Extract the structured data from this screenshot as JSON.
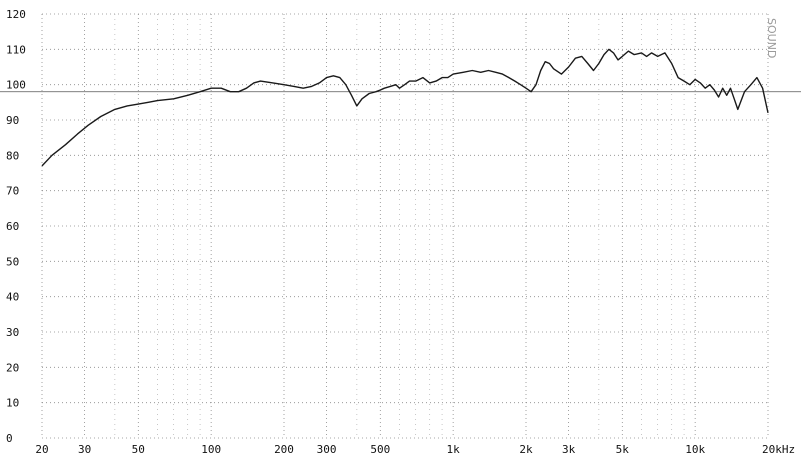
{
  "chart_data": {
    "type": "line",
    "title": "",
    "xlabel": "",
    "ylabel": "",
    "x_scale": "log",
    "xlim": [
      20,
      20000
    ],
    "ylim": [
      0,
      120
    ],
    "grid": true,
    "x_ticks": [
      {
        "value": 20,
        "label": "20"
      },
      {
        "value": 30,
        "label": "30"
      },
      {
        "value": 50,
        "label": "50"
      },
      {
        "value": 100,
        "label": "100"
      },
      {
        "value": 200,
        "label": "200"
      },
      {
        "value": 300,
        "label": "300"
      },
      {
        "value": 500,
        "label": "500"
      },
      {
        "value": 1000,
        "label": "1k"
      },
      {
        "value": 2000,
        "label": "2k"
      },
      {
        "value": 3000,
        "label": "3k"
      },
      {
        "value": 5000,
        "label": "5k"
      },
      {
        "value": 10000,
        "label": "10k"
      },
      {
        "value": 20000,
        "label": "20kHz"
      }
    ],
    "y_ticks": [
      {
        "value": 0,
        "label": "0"
      },
      {
        "value": 10,
        "label": "10"
      },
      {
        "value": 20,
        "label": "20"
      },
      {
        "value": 30,
        "label": "30"
      },
      {
        "value": 40,
        "label": "40"
      },
      {
        "value": 50,
        "label": "50"
      },
      {
        "value": 60,
        "label": "60"
      },
      {
        "value": 70,
        "label": "70"
      },
      {
        "value": 80,
        "label": "80"
      },
      {
        "value": 90,
        "label": "90"
      },
      {
        "value": 100,
        "label": "100"
      },
      {
        "value": 110,
        "label": "110"
      },
      {
        "value": 120,
        "label": "120"
      }
    ],
    "reference_level": 98,
    "stamp_text": "SOUND",
    "series": [
      {
        "x": [
          20,
          22,
          25,
          28,
          31,
          35,
          40,
          45,
          50,
          55,
          60,
          70,
          80,
          90,
          100,
          110,
          120,
          130,
          140,
          150,
          160,
          180,
          200,
          220,
          240,
          260,
          280,
          300,
          320,
          340,
          360,
          380,
          400,
          420,
          450,
          480,
          500,
          520,
          550,
          580,
          600,
          630,
          660,
          700,
          750,
          800,
          850,
          900,
          950,
          1000,
          1100,
          1200,
          1300,
          1400,
          1500,
          1600,
          1700,
          1800,
          1900,
          2000,
          2100,
          2200,
          2300,
          2400,
          2500,
          2600,
          2800,
          3000,
          3200,
          3400,
          3600,
          3800,
          4000,
          4200,
          4400,
          4600,
          4800,
          5000,
          5300,
          5600,
          6000,
          6300,
          6600,
          7000,
          7500,
          8000,
          8500,
          9000,
          9500,
          10000,
          10500,
          11000,
          11500,
          12000,
          12500,
          13000,
          13500,
          14000,
          14500,
          15000,
          16000,
          17000,
          18000,
          19000,
          20000
        ],
        "y": [
          77,
          80,
          83,
          86,
          88.5,
          91,
          93,
          94,
          94.5,
          95,
          95.5,
          96,
          97,
          98,
          99,
          99,
          98,
          98,
          99,
          100.5,
          101,
          100.5,
          100,
          99.5,
          99,
          99.5,
          100.5,
          102,
          102.5,
          102,
          100,
          97,
          94,
          96,
          97.5,
          98,
          98.5,
          99,
          99.5,
          100,
          99,
          100,
          101,
          101,
          102,
          100.5,
          101,
          102,
          102,
          103,
          103.5,
          104,
          103.5,
          104,
          103.5,
          103,
          102,
          101,
          100,
          99,
          98,
          100,
          104,
          106.5,
          106,
          104.5,
          103,
          105,
          107.5,
          108,
          106,
          104,
          106,
          108.5,
          110,
          109,
          107,
          108,
          109.5,
          108.5,
          109,
          108,
          109,
          108,
          109,
          106,
          102,
          101,
          100,
          101.5,
          100.5,
          99,
          100,
          98.5,
          96.5,
          99,
          97,
          99,
          96,
          93,
          98,
          100,
          102,
          99,
          92
        ]
      }
    ]
  }
}
